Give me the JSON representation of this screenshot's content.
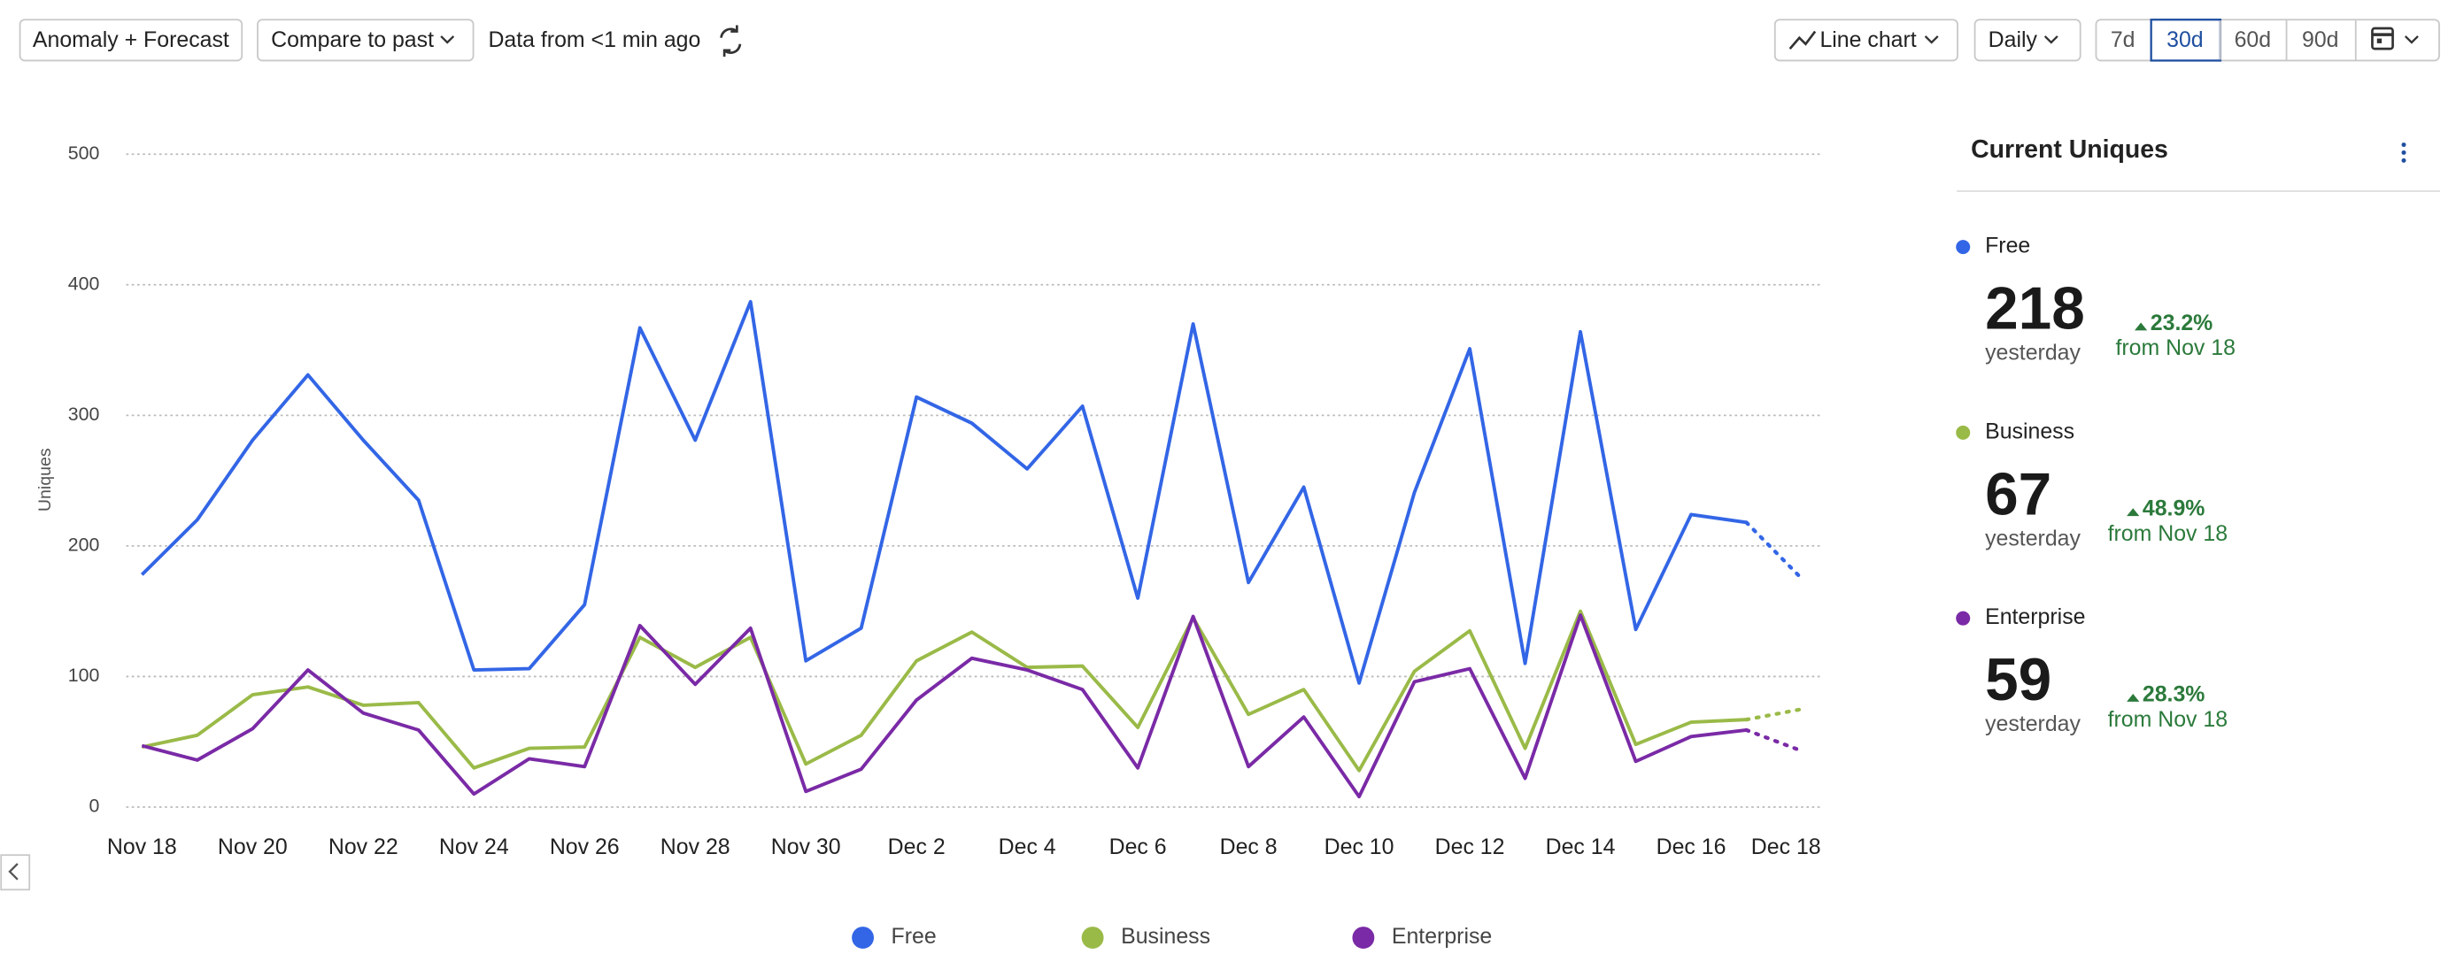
{
  "toolbar": {
    "mode": "Anomaly + Forecast",
    "compare": "Compare to past",
    "freshness": "Data from <1 min ago",
    "chart_kind": "Line chart",
    "interval": "Daily",
    "ranges": [
      "7d",
      "30d",
      "60d",
      "90d"
    ]
  },
  "chart_data": {
    "type": "line",
    "y_label": "Uniques",
    "x": [
      "Nov 18",
      null,
      "Nov 20",
      null,
      "Nov 22",
      null,
      "Nov 24",
      null,
      "Nov 26",
      null,
      "Nov 28",
      null,
      "Nov 30",
      null,
      "Dec 2",
      null,
      "Dec 4",
      null,
      "Dec 6",
      null,
      "Dec 8",
      null,
      "Dec 10",
      null,
      "Dec 12",
      null,
      "Dec 14",
      null,
      "Dec 16",
      null,
      "Dec 18"
    ],
    "ylim": [
      0,
      500
    ],
    "yticks": [
      0,
      100,
      200,
      300,
      400,
      500
    ],
    "grid": true,
    "series": [
      {
        "name": "Free",
        "color": "#3366e6",
        "values": [
          178,
          220,
          281,
          331,
          281,
          235,
          105,
          106,
          155,
          367,
          281,
          387,
          112,
          137,
          314,
          294,
          259,
          307,
          160,
          370,
          172,
          245,
          95,
          241,
          351,
          110,
          364,
          136,
          224,
          218,
          null
        ],
        "forecast": 175
      },
      {
        "name": "Business",
        "color": "#9aba48",
        "values": [
          46,
          55,
          86,
          92,
          78,
          80,
          30,
          45,
          46,
          130,
          107,
          130,
          33,
          55,
          112,
          134,
          107,
          108,
          61,
          145,
          71,
          90,
          28,
          104,
          135,
          45,
          150,
          48,
          65,
          67,
          null
        ],
        "forecast": 75
      },
      {
        "name": "Enterprise",
        "color": "#7a2aa6",
        "values": [
          47,
          36,
          60,
          105,
          72,
          59,
          10,
          37,
          31,
          139,
          94,
          137,
          12,
          29,
          82,
          114,
          105,
          90,
          30,
          146,
          31,
          69,
          8,
          96,
          106,
          22,
          147,
          35,
          54,
          59,
          null
        ],
        "forecast": 43
      }
    ]
  },
  "summary": {
    "title": "Current Uniques",
    "items": [
      {
        "period": "yesterday",
        "change": "23.2%",
        "since": "from Nov 18"
      },
      {
        "period": "yesterday",
        "change": "48.9%",
        "since": "from Nov 18"
      },
      {
        "period": "yesterday",
        "change": "28.3%",
        "since": "from Nov 18"
      }
    ]
  }
}
